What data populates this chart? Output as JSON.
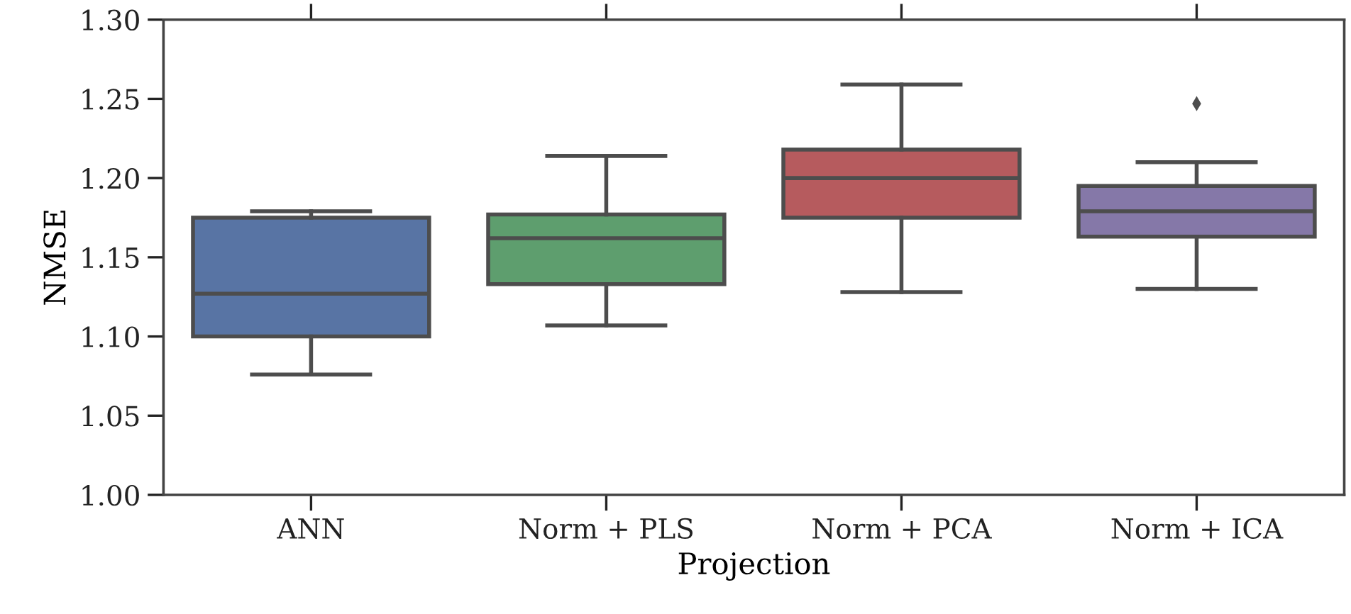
{
  "chart_data": {
    "type": "box",
    "xlabel": "Projection",
    "ylabel": "NMSE",
    "categories": [
      "ANN",
      "Norm + PLS",
      "Norm + PCA",
      "Norm + ICA"
    ],
    "colors": [
      "#5874a4",
      "#5e9e6e",
      "#b65b5e",
      "#8578a8"
    ],
    "boxes": [
      {
        "low": 1.076,
        "q1": 1.1,
        "median": 1.127,
        "q3": 1.175,
        "high": 1.179
      },
      {
        "low": 1.107,
        "q1": 1.133,
        "median": 1.162,
        "q3": 1.177,
        "high": 1.214
      },
      {
        "low": 1.128,
        "q1": 1.175,
        "median": 1.2,
        "q3": 1.218,
        "high": 1.259
      },
      {
        "low": 1.13,
        "q1": 1.163,
        "median": 1.179,
        "q3": 1.195,
        "high": 1.21,
        "outliers": [
          1.247
        ]
      }
    ],
    "ylim": [
      1.0,
      1.3
    ],
    "yticks": [
      {
        "value": 1.0,
        "label": "1.00"
      },
      {
        "value": 1.05,
        "label": "1.05"
      },
      {
        "value": 1.1,
        "label": "1.10"
      },
      {
        "value": 1.15,
        "label": "1.15"
      },
      {
        "value": 1.2,
        "label": "1.20"
      },
      {
        "value": 1.25,
        "label": "1.25"
      },
      {
        "value": 1.3,
        "label": "1.30"
      }
    ],
    "grid": false,
    "legend": false
  }
}
